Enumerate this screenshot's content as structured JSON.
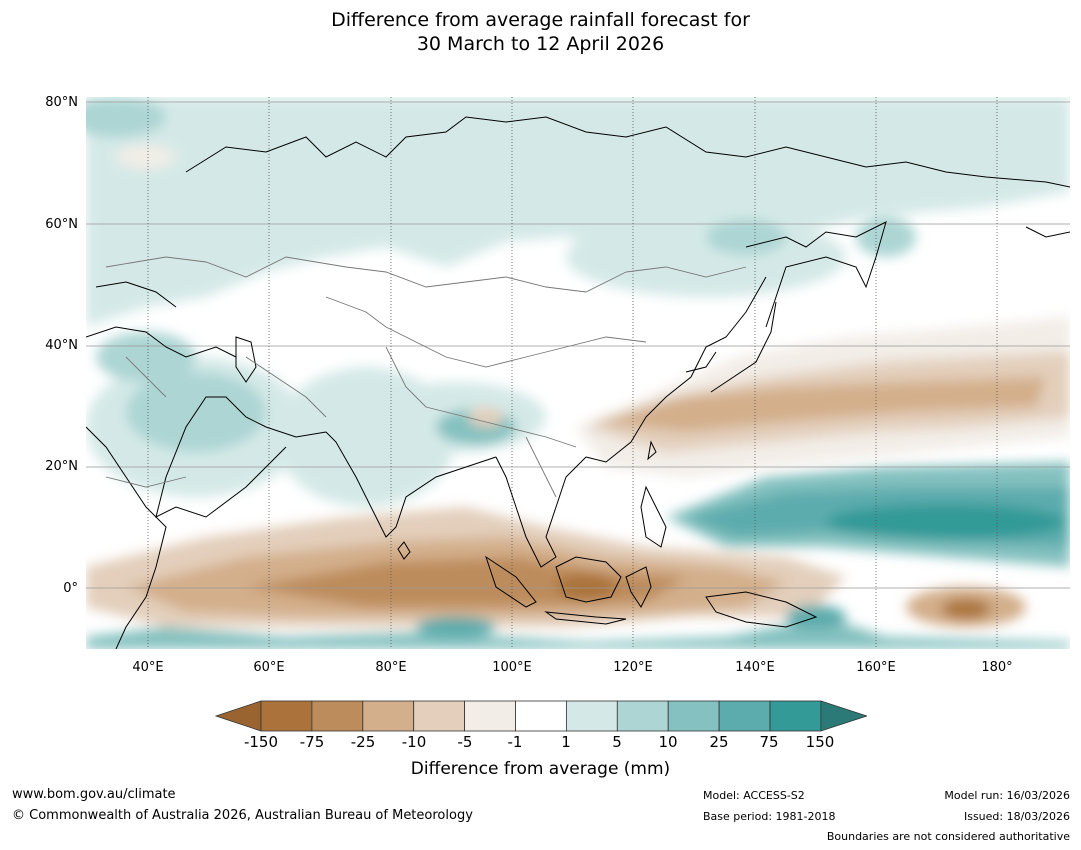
{
  "title": {
    "line1": "Difference from average rainfall forecast for",
    "line2": "30 March to 12 April 2026"
  },
  "map": {
    "lat_labels": [
      "80°N",
      "60°N",
      "40°N",
      "20°N",
      "0°"
    ],
    "lon_labels": [
      "40°E",
      "60°E",
      "80°E",
      "100°E",
      "120°E",
      "140°E",
      "160°E",
      "180°"
    ]
  },
  "colorbar": {
    "ticks": [
      "-150",
      "-75",
      "-25",
      "-10",
      "-5",
      "-1",
      "1",
      "5",
      "10",
      "25",
      "75",
      "150"
    ],
    "colors": [
      "#ab733b",
      "#bd8c5c",
      "#d3af8b",
      "#e3cfbc",
      "#f2ede7",
      "#ffffff",
      "#d4e9e7",
      "#acd5d4",
      "#84c1c0",
      "#5dacad",
      "#339a97"
    ],
    "under_color": "#9a6430",
    "over_color": "#2c7a77",
    "label": "Difference from average (mm)"
  },
  "footer": {
    "website": "www.bom.gov.au/climate",
    "copyright": "© Commonwealth of Australia 2026, Australian Bureau of Meteorology",
    "model": "Model: ACCESS-S2",
    "base_period": "Base period: 1981-2018",
    "model_run": "Model run: 16/03/2026",
    "issued": "Issued: 18/03/2026",
    "disclaimer": "Boundaries are not considered authoritative"
  }
}
